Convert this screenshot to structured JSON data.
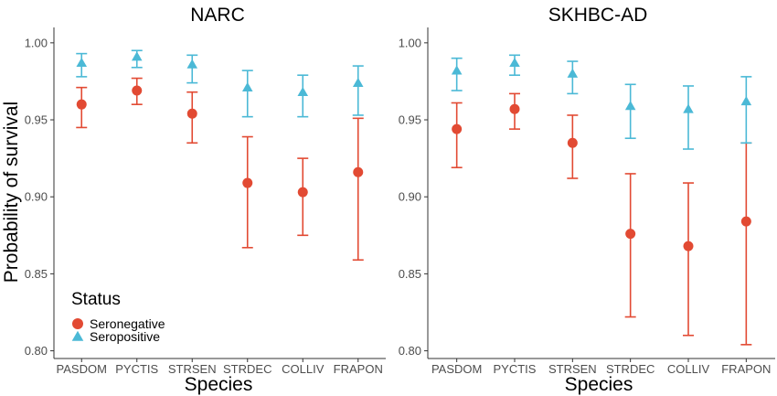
{
  "chart_data": {
    "type": "scatter",
    "ylabel": "Probability of survival",
    "ylim": [
      0.795,
      1.01
    ],
    "yticks": [
      "0.80",
      "0.85",
      "0.90",
      "0.95",
      "1.00"
    ],
    "grid": false,
    "legend": {
      "title": "Status",
      "placement": "bottom-left of first panel",
      "entries": [
        {
          "name": "Seronegative",
          "color": "#E24A33",
          "marker": "circle"
        },
        {
          "name": "Seropositive",
          "color": "#4BB9D6",
          "marker": "triangle"
        }
      ]
    },
    "panels": [
      {
        "title": "NARC",
        "xlabel": "Species",
        "categories": [
          "PASDOM",
          "PYCTIS",
          "STRSEN",
          "STRDEC",
          "COLLIV",
          "FRAPON"
        ],
        "series": [
          {
            "name": "Seronegative",
            "values": [
              0.96,
              0.969,
              0.954,
              0.909,
              0.903,
              0.916
            ],
            "lower": [
              0.945,
              0.96,
              0.935,
              0.867,
              0.875,
              0.859
            ],
            "upper": [
              0.971,
              0.977,
              0.968,
              0.939,
              0.925,
              0.951
            ]
          },
          {
            "name": "Seropositive",
            "values": [
              0.987,
              0.991,
              0.986,
              0.971,
              0.968,
              0.974
            ],
            "lower": [
              0.978,
              0.984,
              0.974,
              0.952,
              0.952,
              0.953
            ],
            "upper": [
              0.993,
              0.995,
              0.992,
              0.982,
              0.979,
              0.985
            ]
          }
        ]
      },
      {
        "title": "SKHBC-AD",
        "xlabel": "Species",
        "categories": [
          "PASDOM",
          "PYCTIS",
          "STRSEN",
          "STRDEC",
          "COLLIV",
          "FRAPON"
        ],
        "series": [
          {
            "name": "Seronegative",
            "values": [
              0.944,
              0.957,
              0.935,
              0.876,
              0.868,
              0.884
            ],
            "lower": [
              0.919,
              0.944,
              0.912,
              0.822,
              0.81,
              0.804
            ],
            "upper": [
              0.961,
              0.967,
              0.953,
              0.915,
              0.909,
              0.935
            ]
          },
          {
            "name": "Seropositive",
            "values": [
              0.982,
              0.987,
              0.98,
              0.959,
              0.957,
              0.962
            ],
            "lower": [
              0.969,
              0.979,
              0.967,
              0.938,
              0.931,
              0.935
            ],
            "upper": [
              0.99,
              0.992,
              0.988,
              0.973,
              0.972,
              0.978
            ]
          }
        ]
      }
    ]
  }
}
